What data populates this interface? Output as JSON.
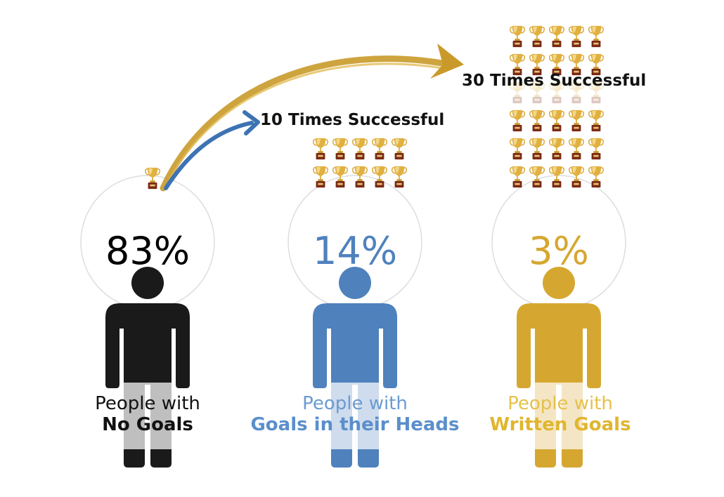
{
  "colors": {
    "black": "#1a1a1a",
    "blue": "#4f81bd",
    "gold": "#d6a730"
  },
  "arrows": {
    "ten_times": "10 Times Successful",
    "thirty_times": "30 Times Successful"
  },
  "groups": [
    {
      "percent": "83%",
      "line1": "People with",
      "line2": "No Goals",
      "color": "#1a1a1a",
      "trophies": 1
    },
    {
      "percent": "14%",
      "line1": "People with",
      "line2": "Goals in their Heads",
      "color": "#4f81bd",
      "trophies": 10
    },
    {
      "percent": "3%",
      "line1": "People with",
      "line2": "Written Goals",
      "color": "#d6a730",
      "trophies": 30
    }
  ],
  "icons": {
    "trophy": "trophy-icon",
    "person": "person-icon",
    "arrow": "curved-arrow-icon"
  }
}
